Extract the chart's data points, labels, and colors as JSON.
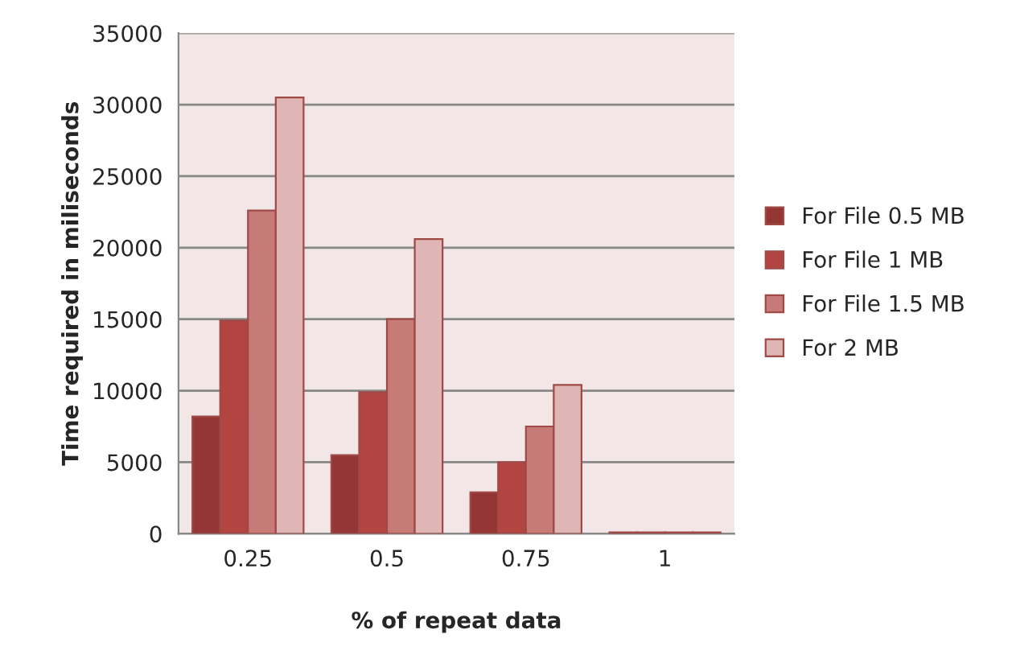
{
  "chart_data": {
    "type": "bar",
    "xlabel": "% of repeat data",
    "ylabel": "Time required in miliseconds",
    "categories": [
      "0.25",
      "0.5",
      "0.75",
      "1"
    ],
    "series": [
      {
        "name": "For File 0.5 MB",
        "color": "#943634",
        "values": [
          8200,
          5500,
          2900,
          100
        ]
      },
      {
        "name": "For File 1 MB",
        "color": "#b24541",
        "values": [
          14900,
          9900,
          5000,
          100
        ]
      },
      {
        "name": "For File 1.5 MB",
        "color": "#c77b79",
        "values": [
          22600,
          15000,
          7500,
          100
        ]
      },
      {
        "name": "For 2 MB",
        "color": "#dfb5b6",
        "values": [
          30500,
          20600,
          10400,
          100
        ]
      }
    ],
    "ylim": [
      0,
      35000
    ],
    "yticks": [
      0,
      5000,
      10000,
      15000,
      20000,
      25000,
      30000,
      35000
    ],
    "grid": "y",
    "legend": "right"
  }
}
